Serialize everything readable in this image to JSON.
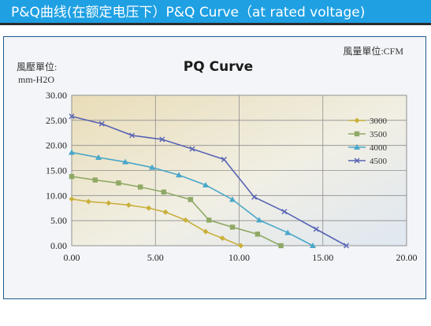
{
  "header": {
    "title": "P&Q曲线(在额定电压下）P&Q Curve（at rated voltage)"
  },
  "colors": {
    "banner": "#1fa0e3"
  },
  "chart_data": {
    "type": "line",
    "title": "PQ Curve",
    "ylabel_line1": "風壓單位:",
    "ylabel_line2": "mm-H2O",
    "xunit_label": "風量單位:CFM",
    "xlim": [
      0,
      20
    ],
    "ylim": [
      0,
      30
    ],
    "xticks": [
      0,
      5,
      10,
      15,
      20
    ],
    "xtick_labels": [
      "0.00",
      "5.00",
      "10.00",
      "15.00",
      "20.00"
    ],
    "yticks": [
      0,
      5,
      10,
      15,
      20,
      25,
      30
    ],
    "ytick_labels": [
      "0.00",
      "5.00",
      "10.00",
      "15.00",
      "20.00",
      "25.00",
      "30.00"
    ],
    "grid": true,
    "legend_position": "right",
    "series": [
      {
        "name": "3000",
        "color": "#c9b03c",
        "marker": "diamond",
        "x": [
          0,
          1.0,
          2.2,
          3.4,
          4.6,
          5.6,
          6.8,
          8.0,
          9.0,
          10.1
        ],
        "y": [
          9.3,
          8.8,
          8.5,
          8.1,
          7.5,
          6.7,
          5.1,
          2.8,
          1.5,
          0
        ]
      },
      {
        "name": "3500",
        "color": "#8fa965",
        "marker": "square",
        "x": [
          0,
          1.4,
          2.8,
          4.1,
          5.5,
          7.1,
          8.2,
          9.6,
          11.1,
          12.5
        ],
        "y": [
          13.8,
          13.1,
          12.5,
          11.7,
          10.7,
          9.2,
          5.1,
          3.7,
          2.3,
          0
        ]
      },
      {
        "name": "4000",
        "color": "#4aa7c9",
        "marker": "triangle",
        "x": [
          0,
          1.6,
          3.2,
          4.8,
          6.4,
          8.0,
          9.6,
          11.2,
          12.9,
          14.4
        ],
        "y": [
          18.6,
          17.6,
          16.7,
          15.6,
          14.1,
          12.1,
          9.2,
          5.1,
          2.6,
          0
        ]
      },
      {
        "name": "4500",
        "color": "#5864b4",
        "marker": "x",
        "x": [
          0,
          1.8,
          3.6,
          5.4,
          7.2,
          9.1,
          10.9,
          12.7,
          14.6,
          16.4
        ],
        "y": [
          25.8,
          24.3,
          22.0,
          21.2,
          19.3,
          17.2,
          9.7,
          6.8,
          3.3,
          0
        ]
      }
    ]
  }
}
